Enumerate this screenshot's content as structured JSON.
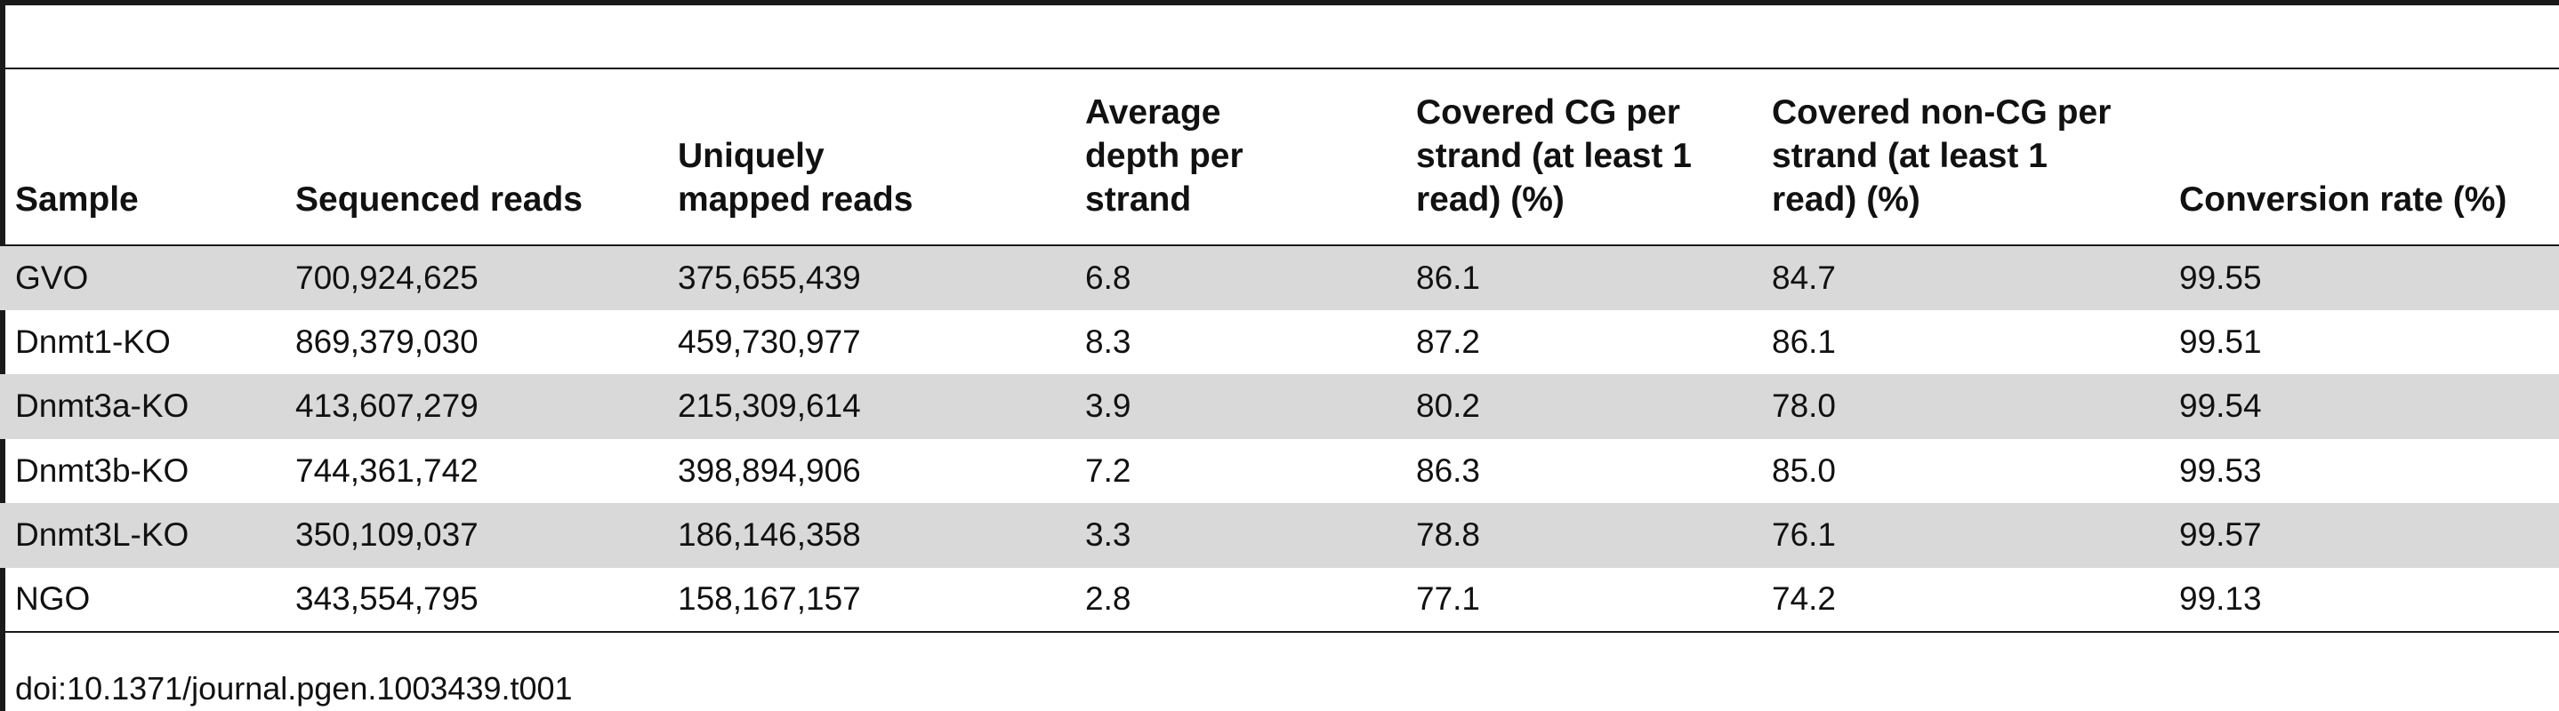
{
  "table": {
    "headers": [
      "Sample",
      "Sequenced reads",
      "Uniquely mapped reads",
      "Average depth per strand",
      "Covered CG per strand (at least 1 read) (%)",
      "Covered non-CG per strand (at least 1 read) (%)",
      "Conversion rate (%)"
    ],
    "rows": [
      [
        "GVO",
        "700,924,625",
        "375,655,439",
        "6.8",
        "86.1",
        "84.7",
        "99.55"
      ],
      [
        "Dnmt1-KO",
        "869,379,030",
        "459,730,977",
        "8.3",
        "87.2",
        "86.1",
        "99.51"
      ],
      [
        "Dnmt3a-KO",
        "413,607,279",
        "215,309,614",
        "3.9",
        "80.2",
        "78.0",
        "99.54"
      ],
      [
        "Dnmt3b-KO",
        "744,361,742",
        "398,894,906",
        "7.2",
        "86.3",
        "85.0",
        "99.53"
      ],
      [
        "Dnmt3L-KO",
        "350,109,037",
        "186,146,358",
        "3.3",
        "78.8",
        "76.1",
        "99.57"
      ],
      [
        "NGO",
        "343,554,795",
        "158,167,157",
        "2.8",
        "77.1",
        "74.2",
        "99.13"
      ]
    ]
  },
  "doi": "doi:10.1371/journal.pgen.1003439.t001",
  "colors": {
    "row_shade": "#d9d9d9",
    "rule": "#1a1a1a"
  }
}
